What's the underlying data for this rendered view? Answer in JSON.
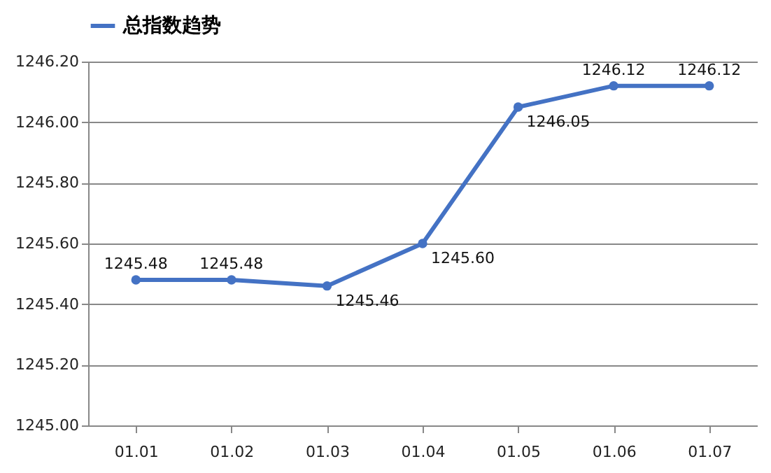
{
  "chart_data": {
    "type": "line",
    "categories": [
      "01.01",
      "01.02",
      "01.03",
      "01.04",
      "01.05",
      "01.06",
      "01.07"
    ],
    "series": [
      {
        "name": "总指数趋势",
        "color": "#4472c4",
        "values": [
          1245.48,
          1245.48,
          1245.46,
          1245.6,
          1246.05,
          1246.12,
          1246.12
        ],
        "value_labels": [
          "1245.48",
          "1245.48",
          "1245.46",
          "1245.60",
          "1246.05",
          "1246.12",
          "1246.12"
        ]
      }
    ],
    "ylim": [
      1245,
      1246.2
    ],
    "yticks": [
      {
        "value": 1245,
        "label": "1245.00"
      },
      {
        "value": 1245.2,
        "label": "1245.20"
      },
      {
        "value": 1245.4,
        "label": "1245.40"
      },
      {
        "value": 1245.6,
        "label": "1245.60"
      },
      {
        "value": 1245.8,
        "label": "1245.80"
      },
      {
        "value": 1246,
        "label": "1246.00"
      },
      {
        "value": 1246.2,
        "label": "1246.20"
      }
    ],
    "grid": "y",
    "legend": "top",
    "marker": "circle",
    "line_style": "solid"
  }
}
